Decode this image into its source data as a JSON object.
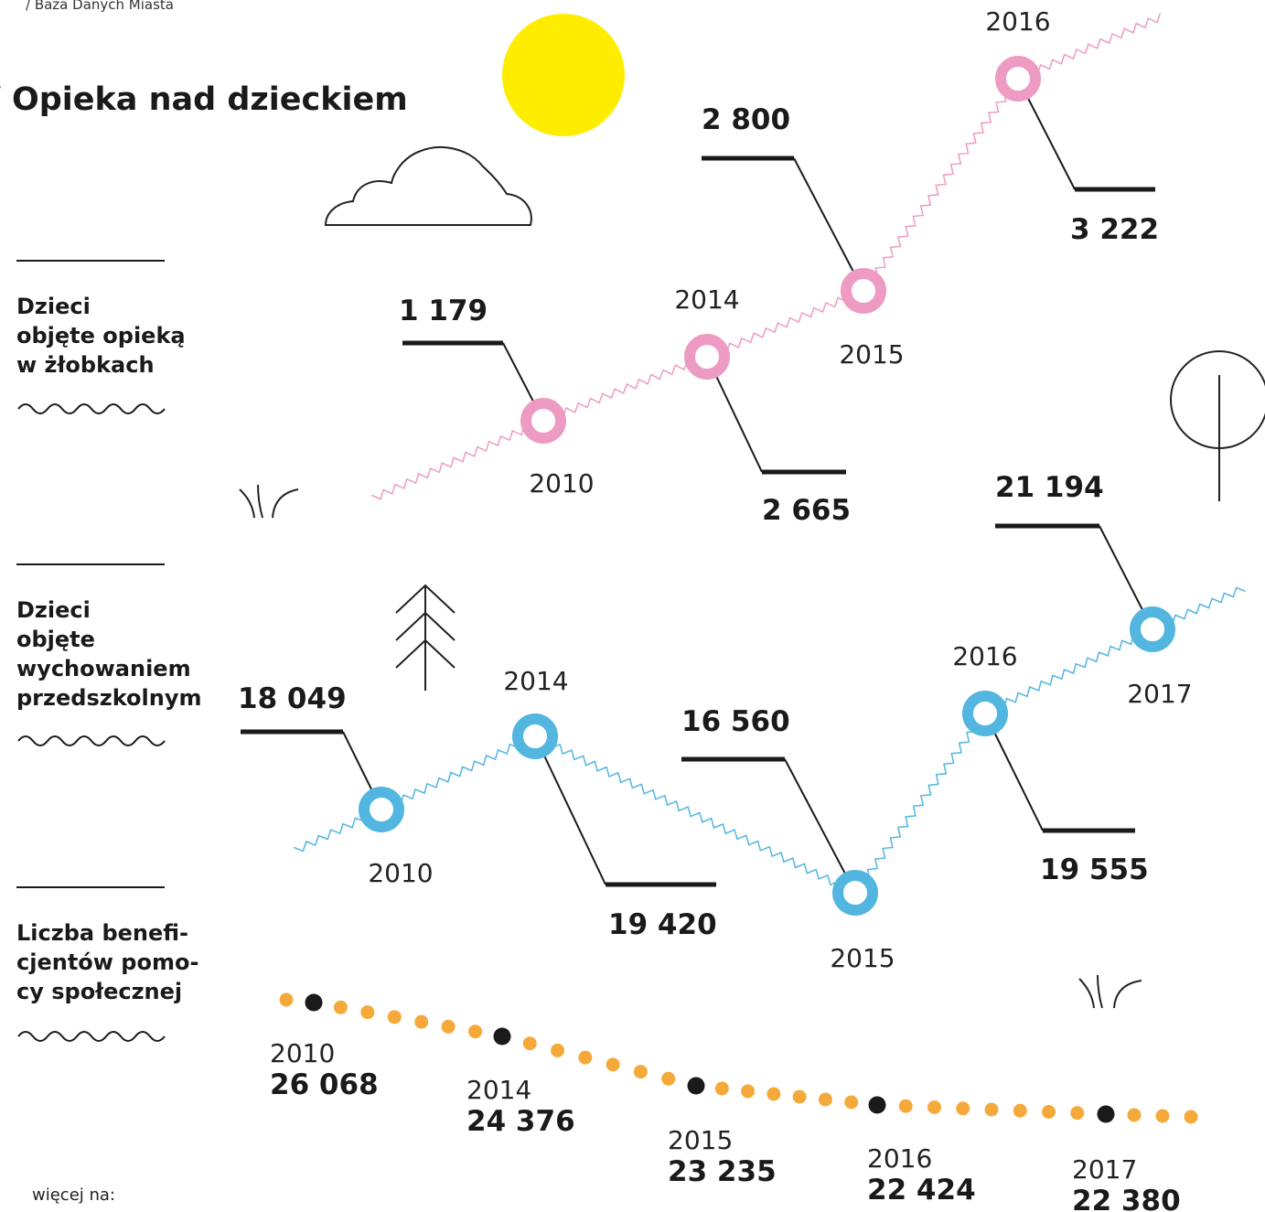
{
  "source": "/ Baza Danych Miasta",
  "title": "/ Opieka nad dzieckiem",
  "sections": [
    {
      "lines": [
        "Dzieci",
        "objęte opieką",
        "w żłobkach"
      ]
    },
    {
      "lines": [
        "Dzieci",
        "objęte",
        "wychowaniem",
        "przedszkolnym"
      ]
    },
    {
      "lines": [
        "Liczba benefi-",
        "cjentów pomo-",
        "cy społecznej"
      ]
    }
  ],
  "nurseries": [
    {
      "year": "2010",
      "value": "1 179"
    },
    {
      "year": "2014",
      "value": "2 665"
    },
    {
      "year": "2015",
      "value": "2 800"
    },
    {
      "year": "2016",
      "value": "3 222"
    }
  ],
  "preschool": [
    {
      "year": "2010",
      "value": "18 049"
    },
    {
      "year": "2014",
      "value": "19 420"
    },
    {
      "year": "2015",
      "value": "16 560"
    },
    {
      "year": "2016",
      "value": "19 555"
    },
    {
      "year": "2017",
      "value": "21 194"
    }
  ],
  "welfare": [
    {
      "year": "2010",
      "value": "26 068"
    },
    {
      "year": "2014",
      "value": "24 376"
    },
    {
      "year": "2015",
      "value": "23 235"
    },
    {
      "year": "2016",
      "value": "22 424"
    },
    {
      "year": "2017",
      "value": "22 380"
    }
  ],
  "footer": "więcej na:"
}
